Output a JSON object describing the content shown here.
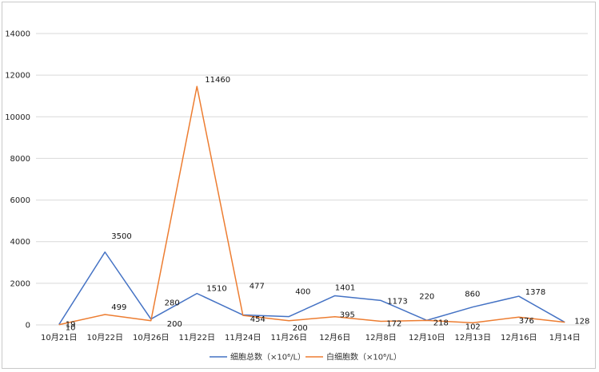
{
  "chart_data": {
    "type": "line",
    "title": "",
    "xlabel": "",
    "ylabel": "",
    "ylim": [
      0,
      14000
    ],
    "yticks": [
      0,
      2000,
      4000,
      6000,
      8000,
      10000,
      12000,
      14000
    ],
    "grid": true,
    "legend_position": "bottom",
    "categories": [
      "10月21日",
      "10月22日",
      "10月26日",
      "11月22日",
      "11月24日",
      "11月26日",
      "12月6日",
      "12月8日",
      "12月10日",
      "12月13日",
      "12月16日",
      "1月14日"
    ],
    "series": [
      {
        "name": "细胞总数（×10⁶/L）",
        "color": "#4472C4",
        "values": [
          19,
          3500,
          280,
          1510,
          477,
          400,
          1401,
          1173,
          220,
          860,
          1378,
          128
        ],
        "labels": [
          "19",
          "3500",
          "280",
          "1510",
          "477",
          "400",
          "1401",
          "1173",
          "220",
          "860",
          "1378",
          "128"
        ]
      },
      {
        "name": "白细胞数（×10⁶/L）",
        "color": "#ED7D31",
        "values": [
          10,
          499,
          200,
          11460,
          454,
          200,
          395,
          172,
          218,
          102,
          376,
          128
        ],
        "labels": [
          "10",
          "499",
          "200",
          "11460",
          "454",
          "200",
          "395",
          "172",
          "218",
          "102",
          "376",
          ""
        ]
      }
    ]
  }
}
